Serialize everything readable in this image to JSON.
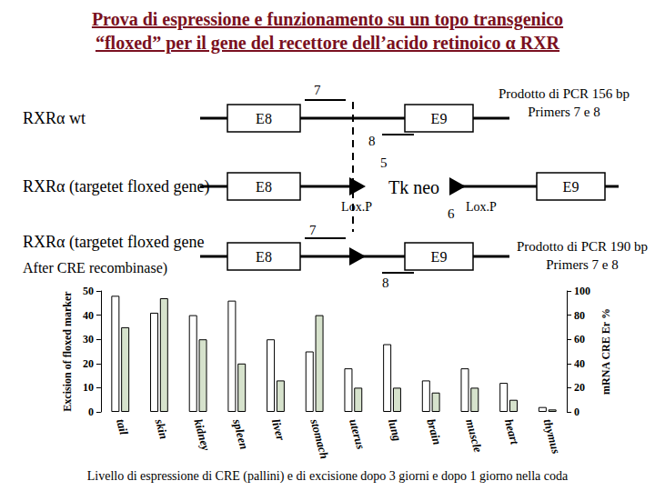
{
  "header": {
    "title_line1": "Prova di espressione e funzionamento su un topo transgenico",
    "title_line2": "“floxed” per il gene del recettore dell’acido retinoico α RXR"
  },
  "diagram": {
    "wt": {
      "label": "RXRα wt",
      "exon_left": "E8",
      "exon_right": "E9",
      "primer_fwd": "7",
      "primer_rev": "8",
      "pcr": [
        "Prodotto di PCR  156 bp",
        "Primers 7 e 8"
      ]
    },
    "floxed": {
      "label": "RXRα (targetet floxed gene)",
      "exon_left": "E8",
      "exon_right": "E9",
      "cassette": "Tk neo",
      "loxp_left": "Lox.P",
      "loxp_right": "Lox.P",
      "primer_fwd": "5",
      "primer_rev": "6"
    },
    "recombined": {
      "label_line1": "RXRα (targetet floxed gene",
      "label_line2": "After CRE recombinase)",
      "exon_left": "E8",
      "exon_right": "E9",
      "primer_fwd": "7",
      "primer_rev": "8",
      "pcr": [
        "Prodotto di PCR  190 bp",
        "Primers 7 e 8"
      ]
    }
  },
  "caption": "Livello di espressione di CRE (pallini) e di excisione dopo 3 giorni e dopo 1 giorno nella coda",
  "chart_data": {
    "type": "bar",
    "categories": [
      "tail",
      "skin",
      "kidney",
      "spleen",
      "liver",
      "stomach",
      "uterus",
      "lung",
      "brain",
      "muscle",
      "heart",
      "thymus"
    ],
    "series": [
      {
        "name": "Excision of floxed marker",
        "color": "#ffffff",
        "values": [
          48,
          41,
          40,
          46,
          30,
          25,
          18,
          28,
          13,
          18,
          12,
          2
        ]
      },
      {
        "name": "mRNA CRE Er %",
        "color": "#d6e2cc",
        "axis": "y2",
        "values": [
          70,
          94,
          60,
          40,
          26,
          80,
          20,
          20,
          16,
          20,
          10,
          2
        ]
      }
    ],
    "ylabel": "Excision of floxed marker",
    "y2label": "mRNA CRE Er %",
    "ylim": [
      0,
      50
    ],
    "yticks": [
      0,
      10,
      20,
      30,
      40,
      50
    ],
    "y2lim": [
      0,
      100
    ],
    "y2ticks": [
      0,
      20,
      40,
      60,
      80,
      100
    ],
    "grid": false
  }
}
